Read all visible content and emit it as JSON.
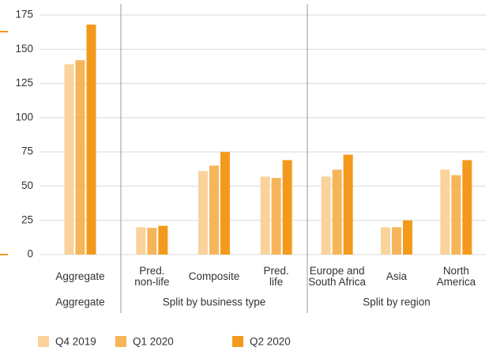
{
  "chart_data": {
    "type": "bar",
    "categories": [
      "Aggregate",
      "Pred.\nnon-life",
      "Composite",
      "Pred.\nlife",
      "Europe and\nSouth Africa",
      "Asia",
      "North\nAmerica"
    ],
    "groups": [
      {
        "label": "Aggregate",
        "size": 1
      },
      {
        "label": "Split by business type",
        "size": 3
      },
      {
        "label": "Split by region",
        "size": 3
      }
    ],
    "series": [
      {
        "name": "Q4 2019",
        "color": "#f9d39b",
        "values": [
          139,
          20,
          61,
          57,
          57,
          20,
          62
        ]
      },
      {
        "name": "Q1 2020",
        "color": "#f7b55a",
        "values": [
          142,
          19.5,
          65,
          56,
          62,
          20,
          58
        ]
      },
      {
        "name": "Q2 2020",
        "color": "#f39a1c",
        "values": [
          168,
          21,
          75,
          69,
          73,
          25,
          69
        ]
      }
    ],
    "ylim": [
      0,
      175
    ],
    "yticks": [
      0,
      25,
      50,
      75,
      100,
      125,
      150,
      175
    ],
    "grid": true,
    "legend": "bottom"
  }
}
